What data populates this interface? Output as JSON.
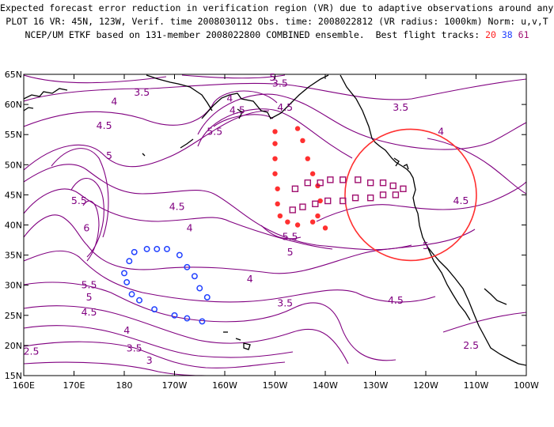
{
  "title": {
    "line1": "Expected forecast error reduction in verification region (VR) due to adaptive observations around any grid point.",
    "line2": "PLOT 16 VR: 45N, 123W, Verif. time 2008030112 Obs. time: 2008022812 (VR radius: 1000km) Norm: u,v,T",
    "line3": "NCEP/UM ETKF based on 131-member 2008022800 COMBINED ensemble.  Best flight tracks:",
    "tracks": [
      "20",
      "38",
      "61"
    ]
  },
  "colors": {
    "contour": "#800080",
    "track_red": "#ff3030",
    "track_blue": "#2040ff",
    "track_purple": "#a01070",
    "vr_circle": "#ff3030"
  },
  "map": {
    "lon_labels": [
      "160E",
      "170E",
      "180",
      "170W",
      "160W",
      "150W",
      "140W",
      "130W",
      "120W",
      "110W",
      "100W"
    ],
    "lat_labels": [
      "15N",
      "20N",
      "25N",
      "30N",
      "35N",
      "40N",
      "45N",
      "50N",
      "55N",
      "60N",
      "65N"
    ],
    "lon_range": [
      160,
      260
    ],
    "lat_range": [
      15,
      65
    ],
    "contour_labels": [
      {
        "text": "3.5",
        "lon": 211,
        "lat": 63.5
      },
      {
        "text": "3.5",
        "lon": 183.5,
        "lat": 62
      },
      {
        "text": "4",
        "lon": 178,
        "lat": 60.5
      },
      {
        "text": "4",
        "lon": 201,
        "lat": 61
      },
      {
        "text": "4.5",
        "lon": 202.5,
        "lat": 59
      },
      {
        "text": "4.5",
        "lon": 212,
        "lat": 59.5
      },
      {
        "text": "4.5",
        "lon": 176,
        "lat": 56.5
      },
      {
        "text": "5.5",
        "lon": 198,
        "lat": 55.5
      },
      {
        "text": "5",
        "lon": 209.5,
        "lat": 64.5
      },
      {
        "text": "3.5",
        "lon": 235,
        "lat": 59.5
      },
      {
        "text": "4",
        "lon": 243,
        "lat": 55.5
      },
      {
        "text": "5",
        "lon": 177,
        "lat": 51.5
      },
      {
        "text": "5.5",
        "lon": 171,
        "lat": 44
      },
      {
        "text": "6",
        "lon": 172.5,
        "lat": 39.5
      },
      {
        "text": "4.5",
        "lon": 190.5,
        "lat": 43
      },
      {
        "text": "4",
        "lon": 193,
        "lat": 39.5
      },
      {
        "text": "5.5",
        "lon": 213,
        "lat": 38
      },
      {
        "text": "5",
        "lon": 213,
        "lat": 35.5
      },
      {
        "text": "5",
        "lon": 240,
        "lat": 36.5
      },
      {
        "text": "4.5",
        "lon": 247,
        "lat": 44
      },
      {
        "text": "4",
        "lon": 205,
        "lat": 31
      },
      {
        "text": "5.5",
        "lon": 173,
        "lat": 30
      },
      {
        "text": "5",
        "lon": 173,
        "lat": 28
      },
      {
        "text": "4.5",
        "lon": 173,
        "lat": 25.5
      },
      {
        "text": "4",
        "lon": 180.5,
        "lat": 22.5
      },
      {
        "text": "3.5",
        "lon": 212,
        "lat": 27
      },
      {
        "text": "4.5",
        "lon": 234,
        "lat": 27.5
      },
      {
        "text": "3.5",
        "lon": 182,
        "lat": 19.5
      },
      {
        "text": "2.5",
        "lon": 161.5,
        "lat": 19
      },
      {
        "text": "3",
        "lon": 185,
        "lat": 17.5
      },
      {
        "text": "2.5",
        "lon": 249,
        "lat": 20
      }
    ],
    "vr_center": {
      "lon": 237,
      "lat": 45
    },
    "red_track": [
      [
        210,
        55.5
      ],
      [
        214.5,
        56
      ],
      [
        210,
        53.5
      ],
      [
        215.5,
        54
      ],
      [
        210,
        51
      ],
      [
        216.5,
        51
      ],
      [
        210,
        48.5
      ],
      [
        217.5,
        48.5
      ],
      [
        210.5,
        46
      ],
      [
        218.5,
        46.5
      ],
      [
        210.5,
        43.5
      ],
      [
        219,
        44
      ],
      [
        211,
        41.5
      ],
      [
        218.5,
        41.5
      ],
      [
        212.5,
        40.5
      ],
      [
        220,
        39.5
      ],
      [
        214.5,
        40
      ],
      [
        217.5,
        40.5
      ]
    ],
    "blue_track": [
      [
        186.5,
        36
      ],
      [
        188.5,
        36
      ],
      [
        184.5,
        36
      ],
      [
        191,
        35
      ],
      [
        182,
        35.5
      ],
      [
        192.5,
        33
      ],
      [
        181,
        34
      ],
      [
        194,
        31.5
      ],
      [
        180,
        32
      ],
      [
        195,
        29.5
      ],
      [
        180.5,
        30.5
      ],
      [
        196.5,
        28
      ],
      [
        181.5,
        28.5
      ],
      [
        183,
        27.5
      ],
      [
        186,
        26
      ],
      [
        190,
        25
      ],
      [
        192.5,
        24.5
      ],
      [
        195.5,
        24
      ]
    ],
    "purple_track": [
      [
        214,
        46
      ],
      [
        216.5,
        47
      ],
      [
        219,
        47
      ],
      [
        221,
        47.5
      ],
      [
        223.5,
        47.5
      ],
      [
        226.5,
        47.5
      ],
      [
        229,
        47
      ],
      [
        231.5,
        47
      ],
      [
        233.5,
        46.5
      ],
      [
        235.5,
        46
      ],
      [
        234,
        45
      ],
      [
        231.5,
        45
      ],
      [
        229,
        44.5
      ],
      [
        226,
        44.5
      ],
      [
        223.5,
        44
      ],
      [
        220.5,
        44
      ],
      [
        218,
        43.5
      ],
      [
        215.5,
        43
      ],
      [
        213.5,
        42.5
      ]
    ]
  }
}
